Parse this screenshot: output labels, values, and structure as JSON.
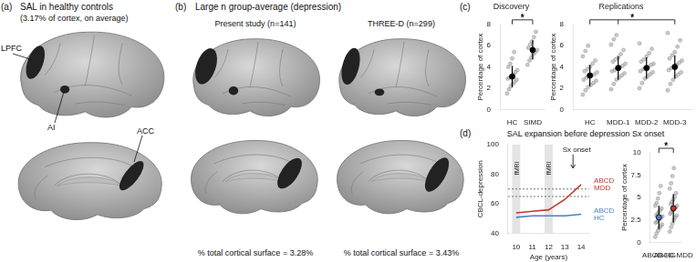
{
  "brain_panels": {
    "a": {
      "label": "(a)",
      "title": "SAL in healthy controls",
      "subtitle": "(3.17% of cortex, on average)",
      "regions": [
        "LPFC",
        "AI",
        "ACC"
      ]
    },
    "b": {
      "label": "(b)",
      "title": "Large n group-average (depression)",
      "maps": [
        {
          "title": "Present study (n=141)",
          "caption": "% total cortical surface = 3.28%"
        },
        {
          "title": "THREE-D (n=299)",
          "caption": "% total cortical surface = 3.43%"
        }
      ]
    }
  },
  "chart_panels": {
    "c": {
      "label": "(c)"
    },
    "d": {
      "label": "(d)",
      "title": "SAL expansion before depression Sx onset"
    }
  },
  "chart_data": [
    {
      "type": "strip",
      "title": "Discovery",
      "categories": [
        "HC",
        "SIMD"
      ],
      "y_label": "Percentage of cortex",
      "ylim": [
        0,
        8
      ],
      "yticks": [
        0,
        2,
        4,
        6,
        8
      ],
      "color": "#9e9e9e",
      "colors": [
        "#000000",
        "#000000"
      ],
      "values": [
        [
          1.5,
          1.9,
          2.2,
          2.4,
          2.6,
          2.8,
          2.9,
          3.0,
          3.1,
          3.3,
          3.5,
          3.7,
          4.0,
          4.3,
          4.8,
          5.4
        ],
        [
          4.2,
          4.6,
          4.9,
          5.2,
          5.4,
          5.6,
          5.8,
          6.1,
          6.4,
          6.8,
          7.3
        ]
      ],
      "mean": [
        3.1,
        5.6
      ],
      "sd": [
        1.0,
        0.9
      ],
      "brackets": [
        {
          "from": "HC",
          "to": [
            "SIMD"
          ],
          "label": "*"
        }
      ]
    },
    {
      "type": "strip",
      "title": "Replications",
      "categories": [
        "HC",
        "MDD-1",
        "MDD-2",
        "MDD-3"
      ],
      "y_label": "Percentage of cortex",
      "ylim": [
        0,
        8
      ],
      "yticks": [
        0,
        2,
        4,
        6,
        8
      ],
      "color": "#9e9e9e",
      "colors": [
        "#000000",
        "#000000",
        "#000000",
        "#000000"
      ],
      "values": [
        [
          1.4,
          1.8,
          2.1,
          2.3,
          2.5,
          2.7,
          2.8,
          3.0,
          3.1,
          3.2,
          3.3,
          3.5,
          3.6,
          3.8,
          4.0,
          4.3,
          4.6,
          5.0,
          5.5,
          6.0
        ],
        [
          1.9,
          2.4,
          2.8,
          3.0,
          3.2,
          3.4,
          3.6,
          3.7,
          3.9,
          4.0,
          4.1,
          4.3,
          4.5,
          4.7,
          4.9,
          5.2,
          5.6,
          6.1,
          6.6,
          7.0
        ],
        [
          2.0,
          2.5,
          2.9,
          3.1,
          3.3,
          3.5,
          3.6,
          3.8,
          3.9,
          4.0,
          4.2,
          4.3,
          4.5,
          4.7,
          5.0,
          5.3,
          5.7,
          6.2
        ],
        [
          1.8,
          2.4,
          2.8,
          3.1,
          3.3,
          3.5,
          3.7,
          3.9,
          4.0,
          4.2,
          4.4,
          4.6,
          4.8,
          5.1,
          5.4,
          5.9,
          6.5,
          7.2
        ]
      ],
      "mean": [
        3.2,
        3.9,
        3.9,
        4.0
      ],
      "sd": [
        1.0,
        1.1,
        1.0,
        1.1
      ],
      "brackets": [
        {
          "from": "HC",
          "to": [
            "MDD-1",
            "MDD-2",
            "MDD-3"
          ],
          "label": "*"
        }
      ]
    },
    {
      "type": "line",
      "x_label": "Age (years)",
      "y_label": "CBCL-depression",
      "x": [
        10,
        11,
        12,
        13,
        14
      ],
      "xlim": [
        9.5,
        14.5
      ],
      "xticks": [
        10,
        11,
        12,
        13,
        14
      ],
      "ylim": [
        40,
        100
      ],
      "yticks": [
        40,
        60,
        80,
        100
      ],
      "series": [
        {
          "name": "ABCD MDD",
          "color": "#c0392b",
          "values": [
            54,
            55,
            56,
            63,
            73
          ]
        },
        {
          "name": "ABCD HC",
          "color": "#4a7fc1",
          "values": [
            51,
            52,
            52,
            52,
            53
          ]
        }
      ],
      "reference_lines": [
        65,
        70
      ],
      "bands": [
        {
          "x": 10,
          "label": "fMRI"
        },
        {
          "x": 12,
          "label": "fMRI"
        }
      ],
      "annotations": [
        {
          "x": 13.5,
          "label": "Sx onset"
        }
      ]
    },
    {
      "type": "strip",
      "categories": [
        "ABCD-HC",
        "ABCD-MDD"
      ],
      "y_label": "Percentage of cortex",
      "ylim": [
        0,
        10
      ],
      "yticks": [
        0,
        2.5,
        5,
        7.5,
        10
      ],
      "color": "#9e9e9e",
      "colors": [
        "#4a7fc1",
        "#c0392b"
      ],
      "values": [
        [
          0.6,
          1.0,
          1.3,
          1.6,
          1.8,
          2.0,
          2.2,
          2.3,
          2.5,
          2.6,
          2.8,
          2.9,
          3.0,
          3.2,
          3.4,
          3.6,
          3.8,
          4.1,
          4.4,
          4.9,
          5.5,
          6.3
        ],
        [
          1.2,
          1.7,
          2.1,
          2.5,
          2.8,
          3.0,
          3.2,
          3.4,
          3.6,
          3.8,
          3.9,
          4.1,
          4.3,
          4.5,
          4.8,
          5.1,
          5.5,
          6.0,
          6.6,
          7.4,
          8.3
        ]
      ],
      "mean": [
        2.8,
        3.8
      ],
      "sd": [
        1.3,
        1.6
      ],
      "brackets": [
        {
          "from": "ABCD-HC",
          "to": [
            "ABCD-MDD"
          ],
          "label": "*"
        }
      ]
    }
  ]
}
